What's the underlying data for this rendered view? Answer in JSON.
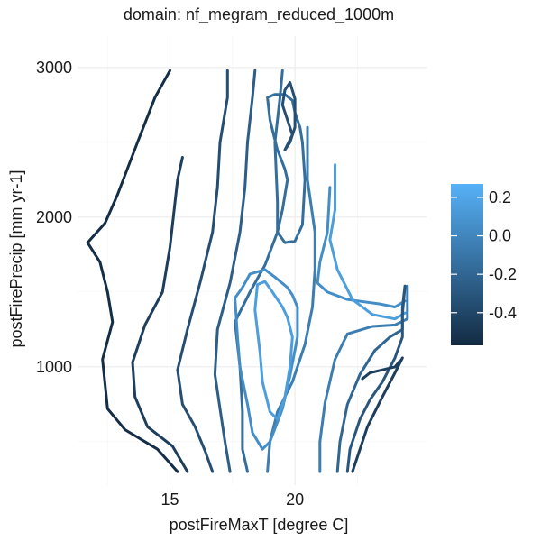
{
  "chart_data": {
    "type": "contour",
    "title": "domain: nf_megram_reduced_1000m",
    "xlabel": "postFireMaxT [degree C]",
    "ylabel": "postFirePrecip [mm yr-1]",
    "xlim": [
      11.3,
      25.3
    ],
    "ylim": [
      210,
      3210
    ],
    "x_ticks": [
      15,
      20
    ],
    "x_tick_labels": [
      "15",
      "20"
    ],
    "y_ticks": [
      1000,
      2000,
      3000
    ],
    "y_tick_labels": [
      "1000",
      "2000",
      "3000"
    ],
    "grid": true,
    "legend": {
      "position": "right",
      "labels": [
        "0.2",
        "0.0",
        "-0.2",
        "-0.4"
      ],
      "label_values": [
        0.2,
        0.0,
        -0.2,
        -0.4
      ],
      "range": [
        -0.57,
        0.27
      ],
      "color_low": "#132B43",
      "color_high": "#56B1F7"
    },
    "series": [
      {
        "level": -0.55,
        "segments": [
          [
            [
              15.3,
              300
            ],
            [
              14.5,
              450
            ],
            [
              13.2,
              580
            ],
            [
              12.5,
              720
            ],
            [
              12.3,
              1050
            ],
            [
              12.7,
              1300
            ],
            [
              12.5,
              1500
            ],
            [
              12.2,
              1700
            ],
            [
              11.7,
              1830
            ],
            [
              12.4,
              1960
            ],
            [
              12.9,
              2150
            ],
            [
              13.7,
              2500
            ],
            [
              14.4,
              2800
            ],
            [
              15.0,
              2980
            ]
          ]
        ]
      },
      {
        "level": -0.45,
        "segments": [
          [
            [
              15.7,
              300
            ],
            [
              15.1,
              470
            ],
            [
              14.1,
              600
            ],
            [
              13.6,
              800
            ],
            [
              13.5,
              1030
            ],
            [
              14.0,
              1280
            ],
            [
              14.7,
              1500
            ],
            [
              15.0,
              1800
            ],
            [
              15.2,
              2100
            ],
            [
              15.3,
              2250
            ],
            [
              15.5,
              2400
            ]
          ]
        ]
      },
      {
        "level": -0.35,
        "segments": [
          [
            [
              16.7,
              300
            ],
            [
              16.4,
              440
            ],
            [
              16.0,
              600
            ],
            [
              15.5,
              750
            ],
            [
              15.3,
              980
            ],
            [
              15.7,
              1250
            ],
            [
              16.2,
              1560
            ],
            [
              16.7,
              1900
            ],
            [
              16.9,
              2200
            ],
            [
              17.0,
              2500
            ],
            [
              17.3,
              2800
            ],
            [
              17.3,
              2980
            ]
          ]
        ]
      },
      {
        "level": -0.25,
        "segments": [
          [
            [
              17.4,
              300
            ],
            [
              17.2,
              500
            ],
            [
              17.0,
              720
            ],
            [
              16.8,
              950
            ],
            [
              16.9,
              1250
            ],
            [
              17.4,
              1560
            ],
            [
              17.8,
              1900
            ],
            [
              18.0,
              2200
            ],
            [
              18.1,
              2500
            ],
            [
              18.3,
              2800
            ],
            [
              18.4,
              2980
            ]
          ]
        ]
      },
      {
        "level": -0.15,
        "segments": [
          [
            [
              18.1,
              300
            ],
            [
              17.9,
              450
            ],
            [
              17.9,
              700
            ],
            [
              17.8,
              1000
            ],
            [
              17.6,
              1300
            ],
            [
              18.2,
              1500
            ],
            [
              18.8,
              1680
            ],
            [
              19.3,
              1900
            ],
            [
              19.3,
              2100
            ],
            [
              19.2,
              2500
            ],
            [
              19.4,
              2800
            ],
            [
              19.5,
              2980
            ]
          ]
        ]
      },
      {
        "level": -0.05,
        "segments": [
          [
            [
              18.9,
              300
            ],
            [
              19.0,
              500
            ],
            [
              19.3,
              700
            ],
            [
              19.9,
              900
            ],
            [
              20.4,
              1150
            ],
            [
              20.7,
              1400
            ],
            [
              20.8,
              1650
            ],
            [
              20.8,
              1900
            ],
            [
              20.5,
              2250
            ],
            [
              20.5,
              2600
            ]
          ]
        ]
      },
      {
        "level": 0.05,
        "segments": [
          [
            [
              17.6,
              1460
            ],
            [
              17.7,
              1200
            ],
            [
              17.8,
              1000
            ],
            [
              18.1,
              750
            ],
            [
              18.3,
              560
            ],
            [
              18.7,
              450
            ],
            [
              19.0,
              500
            ],
            [
              19.5,
              720
            ],
            [
              19.8,
              940
            ],
            [
              20.1,
              1200
            ],
            [
              20.1,
              1400
            ],
            [
              19.9,
              1480
            ],
            [
              19.7,
              1530
            ],
            [
              19.2,
              1600
            ],
            [
              18.8,
              1650
            ],
            [
              18.2,
              1620
            ],
            [
              17.9,
              1530
            ],
            [
              17.6,
              1460
            ]
          ],
          [
            [
              21.4,
              2200
            ],
            [
              21.3,
              1900
            ],
            [
              21.0,
              1700
            ],
            [
              20.9,
              1560
            ],
            [
              21.3,
              1500
            ],
            [
              22.1,
              1450
            ],
            [
              23.4,
              1420
            ],
            [
              24.0,
              1400
            ],
            [
              24.4,
              1440
            ]
          ]
        ]
      },
      {
        "level": 0.15,
        "segments": [
          [
            [
              18.4,
              1380
            ],
            [
              18.6,
              1100
            ],
            [
              18.7,
              900
            ],
            [
              19.0,
              700
            ],
            [
              19.3,
              650
            ],
            [
              19.6,
              800
            ],
            [
              19.8,
              1000
            ],
            [
              19.9,
              1200
            ],
            [
              19.7,
              1330
            ],
            [
              19.5,
              1400
            ],
            [
              19.1,
              1500
            ],
            [
              18.8,
              1570
            ],
            [
              18.5,
              1550
            ],
            [
              18.4,
              1380
            ]
          ],
          [
            [
              21.6,
              2350
            ],
            [
              21.6,
              2050
            ],
            [
              21.4,
              1850
            ],
            [
              21.7,
              1650
            ],
            [
              22.3,
              1450
            ],
            [
              23.1,
              1350
            ],
            [
              24.0,
              1320
            ],
            [
              24.4,
              1360
            ]
          ]
        ]
      },
      {
        "level": -0.15,
        "segments": [
          [
            [
              19.6,
              2320
            ],
            [
              19.7,
              2250
            ],
            [
              19.5,
              2050
            ],
            [
              19.3,
              1900
            ],
            [
              19.6,
              1830
            ],
            [
              20.0,
              1840
            ],
            [
              20.3,
              1950
            ],
            [
              20.4,
              2250
            ],
            [
              20.3,
              2500
            ],
            [
              20.2,
              2600
            ],
            [
              20.0,
              2700
            ],
            [
              19.9,
              2780
            ],
            [
              19.6,
              2820
            ],
            [
              19.2,
              2820
            ],
            [
              18.9,
              2800
            ],
            [
              19.0,
              2650
            ],
            [
              19.3,
              2450
            ],
            [
              19.6,
              2320
            ]
          ]
        ]
      },
      {
        "level": -0.35,
        "segments": [
          [
            [
              19.6,
              2450
            ],
            [
              19.9,
              2550
            ],
            [
              19.7,
              2650
            ],
            [
              19.5,
              2750
            ],
            [
              19.6,
              2850
            ],
            [
              19.8,
              2900
            ],
            [
              20.0,
              2790
            ],
            [
              20.0,
              2700
            ],
            [
              20.0,
              2600
            ],
            [
              19.9,
              2550
            ],
            [
              19.8,
              2500
            ],
            [
              19.6,
              2450
            ]
          ]
        ]
      },
      {
        "level": -0.05,
        "segments": [
          [
            [
              21.0,
              300
            ],
            [
              21.0,
              500
            ],
            [
              21.2,
              760
            ],
            [
              21.6,
              1050
            ],
            [
              22.1,
              1220
            ],
            [
              23.1,
              1270
            ],
            [
              24.0,
              1280
            ],
            [
              24.5,
              1320
            ],
            [
              24.5,
              1540
            ]
          ]
        ]
      },
      {
        "level": -0.2,
        "segments": [
          [
            [
              21.7,
              300
            ],
            [
              21.8,
              500
            ],
            [
              22.1,
              750
            ],
            [
              22.6,
              950
            ],
            [
              23.2,
              1110
            ],
            [
              23.8,
              1200
            ],
            [
              24.3,
              1250
            ],
            [
              24.3,
              1400
            ],
            [
              24.4,
              1540
            ]
          ]
        ]
      },
      {
        "level": -0.3,
        "segments": [
          [
            [
              22.1,
              300
            ],
            [
              22.2,
              450
            ],
            [
              22.6,
              650
            ],
            [
              23.0,
              780
            ],
            [
              23.5,
              900
            ],
            [
              24.0,
              1060
            ],
            [
              24.3,
              1200
            ],
            [
              24.3,
              1350
            ],
            [
              24.4,
              1540
            ]
          ]
        ]
      },
      {
        "level": -0.45,
        "segments": [
          [
            [
              22.3,
              300
            ],
            [
              22.6,
              450
            ],
            [
              22.9,
              600
            ],
            [
              23.5,
              800
            ],
            [
              24.0,
              960
            ],
            [
              24.3,
              1060
            ]
          ],
          [
            [
              22.7,
              920
            ],
            [
              23.0,
              960
            ],
            [
              23.5,
              980
            ],
            [
              24.0,
              1000
            ],
            [
              24.2,
              1040
            ]
          ]
        ]
      }
    ]
  }
}
